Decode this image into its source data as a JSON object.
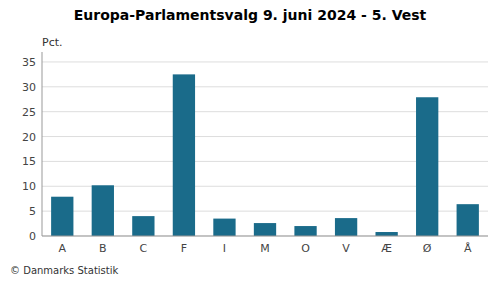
{
  "chart_data": {
    "type": "bar",
    "title": "Europa-Parlamentsvalg 9. juni 2024 - 5. Vest",
    "ylabel": "Pct.",
    "annotations": [
      "© Danmarks Statistik"
    ],
    "categories": [
      "A",
      "B",
      "C",
      "F",
      "I",
      "M",
      "O",
      "V",
      "Æ",
      "Ø",
      "Å"
    ],
    "values": [
      7.9,
      10.2,
      4.0,
      32.5,
      3.5,
      2.6,
      2.0,
      3.6,
      0.8,
      27.9,
      6.4
    ],
    "color": "#1a6b8a",
    "ylim": [
      0,
      37
    ],
    "yticks": [
      0,
      5,
      10,
      15,
      20,
      25,
      30,
      35
    ],
    "grid": true
  }
}
